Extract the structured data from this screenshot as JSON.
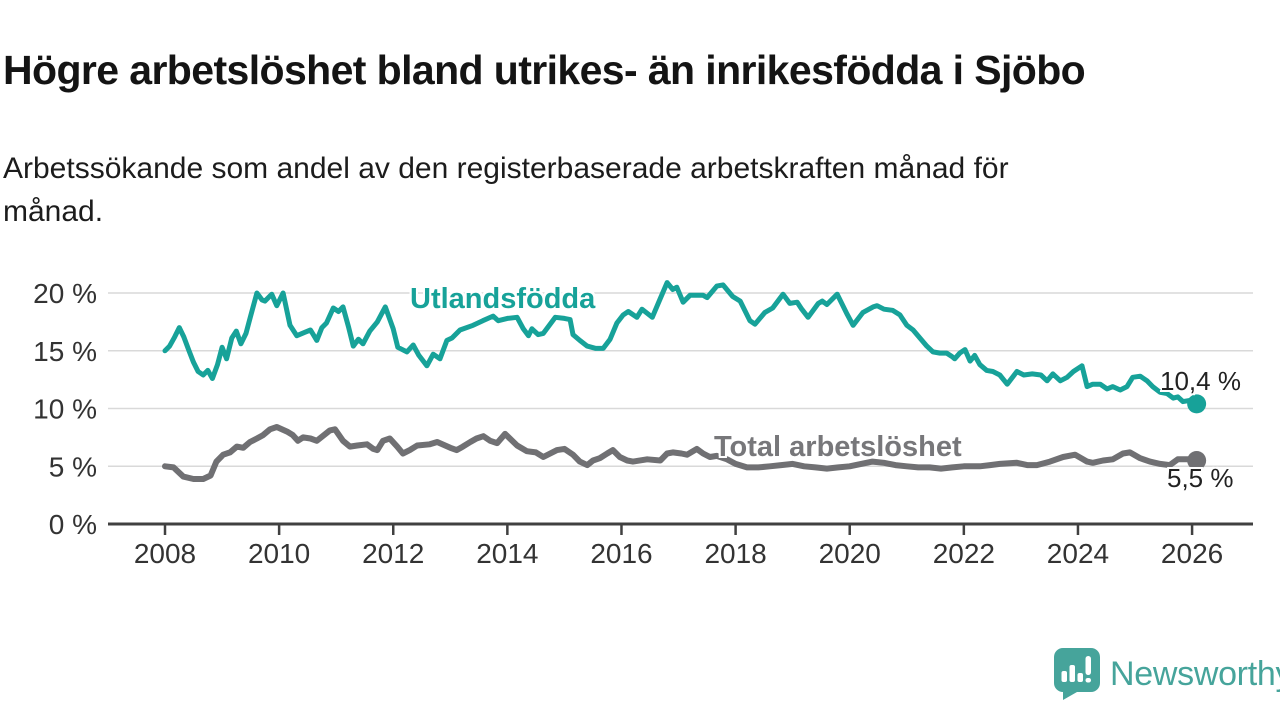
{
  "header": {
    "title": "Högre arbetslöshet bland utrikes- än inrikesfödda i Sjöbo",
    "subtitle": "Arbetssökande som andel av den registerbaserade arbetskraften månad för\nmånad."
  },
  "footer": {
    "brand": "Newsworthy"
  },
  "colors": {
    "foreign_born_line": "#17a299",
    "total_line": "#707073",
    "total_label_text": "#77777a",
    "axis": "#404040",
    "gridline": "#d9d9d9",
    "tick_label": "#333333",
    "logo_teal": "#46a49b",
    "annotation_text": "#222222"
  },
  "chart_data": {
    "type": "line",
    "title": "Högre arbetslöshet bland utrikes- än inrikesfödda i Sjöbo",
    "subtitle": "Arbetssökande som andel av den registerbaserade arbetskraften månad för månad.",
    "xlabel": "",
    "ylabel": "",
    "grid": true,
    "legend_position": "inline-labels",
    "x_axis": {
      "min": 2007,
      "max": 2027.05,
      "ticks": [
        2008,
        2010,
        2012,
        2014,
        2016,
        2018,
        2020,
        2022,
        2024,
        2026
      ]
    },
    "y_axis": {
      "min": 0,
      "max": 21.2,
      "ticks": [
        0,
        5,
        10,
        15,
        20
      ],
      "tick_suffix": " %"
    },
    "series": [
      {
        "name": "Utlandsfödda",
        "color": "#17a299",
        "end_label": "10,4 %",
        "end_value": 10.4,
        "points": [
          [
            2008.0,
            15.0
          ],
          [
            2008.08,
            15.4
          ],
          [
            2008.17,
            16.2
          ],
          [
            2008.25,
            17.0
          ],
          [
            2008.33,
            16.2
          ],
          [
            2008.42,
            15.0
          ],
          [
            2008.5,
            14.0
          ],
          [
            2008.58,
            13.2
          ],
          [
            2008.67,
            12.9
          ],
          [
            2008.75,
            13.3
          ],
          [
            2008.83,
            12.6
          ],
          [
            2008.92,
            13.8
          ],
          [
            2009.0,
            15.3
          ],
          [
            2009.08,
            14.3
          ],
          [
            2009.17,
            16.1
          ],
          [
            2009.25,
            16.7
          ],
          [
            2009.33,
            15.6
          ],
          [
            2009.42,
            16.5
          ],
          [
            2009.5,
            18.0
          ],
          [
            2009.61,
            20.0
          ],
          [
            2009.7,
            19.4
          ],
          [
            2009.75,
            19.3
          ],
          [
            2009.87,
            19.9
          ],
          [
            2009.96,
            18.9
          ],
          [
            2010.07,
            20.0
          ],
          [
            2010.19,
            17.2
          ],
          [
            2010.31,
            16.3
          ],
          [
            2010.45,
            16.6
          ],
          [
            2010.55,
            16.8
          ],
          [
            2010.66,
            15.9
          ],
          [
            2010.75,
            17.0
          ],
          [
            2010.83,
            17.4
          ],
          [
            2010.95,
            18.7
          ],
          [
            2011.04,
            18.4
          ],
          [
            2011.12,
            18.8
          ],
          [
            2011.22,
            17.0
          ],
          [
            2011.3,
            15.4
          ],
          [
            2011.39,
            16.0
          ],
          [
            2011.47,
            15.6
          ],
          [
            2011.59,
            16.7
          ],
          [
            2011.72,
            17.5
          ],
          [
            2011.86,
            18.8
          ],
          [
            2012.0,
            16.9
          ],
          [
            2012.08,
            15.3
          ],
          [
            2012.24,
            14.9
          ],
          [
            2012.35,
            15.5
          ],
          [
            2012.45,
            14.6
          ],
          [
            2012.59,
            13.7
          ],
          [
            2012.7,
            14.7
          ],
          [
            2012.82,
            14.3
          ],
          [
            2012.94,
            15.9
          ],
          [
            2013.03,
            16.1
          ],
          [
            2013.17,
            16.8
          ],
          [
            2013.4,
            17.2
          ],
          [
            2013.57,
            17.6
          ],
          [
            2013.75,
            18.0
          ],
          [
            2013.84,
            17.6
          ],
          [
            2014.0,
            17.8
          ],
          [
            2014.17,
            17.9
          ],
          [
            2014.28,
            16.9
          ],
          [
            2014.37,
            16.3
          ],
          [
            2014.43,
            16.9
          ],
          [
            2014.54,
            16.4
          ],
          [
            2014.63,
            16.5
          ],
          [
            2014.84,
            17.9
          ],
          [
            2015.0,
            17.8
          ],
          [
            2015.1,
            17.7
          ],
          [
            2015.15,
            16.4
          ],
          [
            2015.27,
            15.9
          ],
          [
            2015.4,
            15.4
          ],
          [
            2015.55,
            15.2
          ],
          [
            2015.68,
            15.2
          ],
          [
            2015.8,
            16.0
          ],
          [
            2015.92,
            17.4
          ],
          [
            2016.03,
            18.1
          ],
          [
            2016.12,
            18.4
          ],
          [
            2016.27,
            17.9
          ],
          [
            2016.36,
            18.6
          ],
          [
            2016.54,
            17.9
          ],
          [
            2016.67,
            19.4
          ],
          [
            2016.8,
            20.9
          ],
          [
            2016.9,
            20.3
          ],
          [
            2016.97,
            20.5
          ],
          [
            2017.08,
            19.2
          ],
          [
            2017.2,
            19.8
          ],
          [
            2017.43,
            19.8
          ],
          [
            2017.5,
            19.6
          ],
          [
            2017.67,
            20.6
          ],
          [
            2017.78,
            20.7
          ],
          [
            2017.95,
            19.7
          ],
          [
            2018.08,
            19.3
          ],
          [
            2018.25,
            17.6
          ],
          [
            2018.34,
            17.3
          ],
          [
            2018.51,
            18.3
          ],
          [
            2018.65,
            18.7
          ],
          [
            2018.83,
            19.9
          ],
          [
            2018.95,
            19.1
          ],
          [
            2019.08,
            19.2
          ],
          [
            2019.16,
            18.6
          ],
          [
            2019.27,
            17.9
          ],
          [
            2019.45,
            19.1
          ],
          [
            2019.52,
            19.3
          ],
          [
            2019.6,
            19.0
          ],
          [
            2019.78,
            19.9
          ],
          [
            2019.95,
            18.2
          ],
          [
            2020.06,
            17.2
          ],
          [
            2020.23,
            18.3
          ],
          [
            2020.41,
            18.8
          ],
          [
            2020.48,
            18.9
          ],
          [
            2020.6,
            18.6
          ],
          [
            2020.75,
            18.5
          ],
          [
            2020.88,
            18.1
          ],
          [
            2021.0,
            17.2
          ],
          [
            2021.11,
            16.8
          ],
          [
            2021.23,
            16.1
          ],
          [
            2021.35,
            15.4
          ],
          [
            2021.46,
            14.9
          ],
          [
            2021.58,
            14.8
          ],
          [
            2021.7,
            14.8
          ],
          [
            2021.79,
            14.5
          ],
          [
            2021.84,
            14.3
          ],
          [
            2021.93,
            14.8
          ],
          [
            2022.02,
            15.1
          ],
          [
            2022.11,
            14.1
          ],
          [
            2022.19,
            14.6
          ],
          [
            2022.28,
            13.8
          ],
          [
            2022.4,
            13.3
          ],
          [
            2022.51,
            13.2
          ],
          [
            2022.63,
            12.9
          ],
          [
            2022.76,
            12.1
          ],
          [
            2022.93,
            13.2
          ],
          [
            2023.05,
            12.9
          ],
          [
            2023.2,
            13.0
          ],
          [
            2023.35,
            12.9
          ],
          [
            2023.46,
            12.4
          ],
          [
            2023.56,
            13.0
          ],
          [
            2023.69,
            12.4
          ],
          [
            2023.81,
            12.7
          ],
          [
            2023.92,
            13.2
          ],
          [
            2024.07,
            13.7
          ],
          [
            2024.16,
            11.9
          ],
          [
            2024.26,
            12.1
          ],
          [
            2024.39,
            12.1
          ],
          [
            2024.51,
            11.7
          ],
          [
            2024.61,
            11.9
          ],
          [
            2024.74,
            11.6
          ],
          [
            2024.86,
            11.9
          ],
          [
            2024.96,
            12.7
          ],
          [
            2025.09,
            12.8
          ],
          [
            2025.21,
            12.4
          ],
          [
            2025.31,
            11.9
          ],
          [
            2025.44,
            11.4
          ],
          [
            2025.56,
            11.3
          ],
          [
            2025.67,
            10.9
          ],
          [
            2025.75,
            11.0
          ],
          [
            2025.84,
            10.6
          ],
          [
            2025.96,
            10.7
          ],
          [
            2026.08,
            10.4
          ]
        ]
      },
      {
        "name": "Total arbetslöshet",
        "color": "#707073",
        "end_label": "5,5 %",
        "end_value": 5.5,
        "points": [
          [
            2008.0,
            5.0
          ],
          [
            2008.15,
            4.9
          ],
          [
            2008.32,
            4.1
          ],
          [
            2008.5,
            3.9
          ],
          [
            2008.67,
            3.9
          ],
          [
            2008.8,
            4.2
          ],
          [
            2008.9,
            5.4
          ],
          [
            2009.02,
            6.0
          ],
          [
            2009.14,
            6.2
          ],
          [
            2009.26,
            6.7
          ],
          [
            2009.37,
            6.6
          ],
          [
            2009.49,
            7.1
          ],
          [
            2009.61,
            7.4
          ],
          [
            2009.72,
            7.7
          ],
          [
            2009.84,
            8.2
          ],
          [
            2009.96,
            8.4
          ],
          [
            2010.14,
            8.0
          ],
          [
            2010.24,
            7.7
          ],
          [
            2010.33,
            7.2
          ],
          [
            2010.42,
            7.5
          ],
          [
            2010.55,
            7.4
          ],
          [
            2010.66,
            7.2
          ],
          [
            2010.89,
            8.1
          ],
          [
            2010.98,
            8.2
          ],
          [
            2011.12,
            7.2
          ],
          [
            2011.24,
            6.7
          ],
          [
            2011.37,
            6.8
          ],
          [
            2011.54,
            6.9
          ],
          [
            2011.65,
            6.5
          ],
          [
            2011.72,
            6.4
          ],
          [
            2011.82,
            7.2
          ],
          [
            2011.94,
            7.4
          ],
          [
            2012.07,
            6.7
          ],
          [
            2012.17,
            6.1
          ],
          [
            2012.29,
            6.4
          ],
          [
            2012.42,
            6.8
          ],
          [
            2012.64,
            6.9
          ],
          [
            2012.77,
            7.1
          ],
          [
            2013.0,
            6.6
          ],
          [
            2013.11,
            6.4
          ],
          [
            2013.22,
            6.7
          ],
          [
            2013.35,
            7.1
          ],
          [
            2013.46,
            7.4
          ],
          [
            2013.58,
            7.6
          ],
          [
            2013.7,
            7.2
          ],
          [
            2013.82,
            7.0
          ],
          [
            2013.96,
            7.8
          ],
          [
            2014.17,
            6.8
          ],
          [
            2014.34,
            6.3
          ],
          [
            2014.5,
            6.2
          ],
          [
            2014.63,
            5.8
          ],
          [
            2014.75,
            6.1
          ],
          [
            2014.87,
            6.4
          ],
          [
            2015.0,
            6.5
          ],
          [
            2015.15,
            6.0
          ],
          [
            2015.27,
            5.4
          ],
          [
            2015.4,
            5.1
          ],
          [
            2015.5,
            5.5
          ],
          [
            2015.62,
            5.7
          ],
          [
            2015.75,
            6.1
          ],
          [
            2015.85,
            6.4
          ],
          [
            2015.97,
            5.8
          ],
          [
            2016.1,
            5.5
          ],
          [
            2016.2,
            5.4
          ],
          [
            2016.45,
            5.6
          ],
          [
            2016.68,
            5.5
          ],
          [
            2016.8,
            6.1
          ],
          [
            2016.9,
            6.2
          ],
          [
            2017.05,
            6.1
          ],
          [
            2017.15,
            6.0
          ],
          [
            2017.32,
            6.5
          ],
          [
            2017.43,
            6.1
          ],
          [
            2017.55,
            5.8
          ],
          [
            2017.67,
            5.9
          ],
          [
            2017.85,
            5.6
          ],
          [
            2018.0,
            5.2
          ],
          [
            2018.2,
            4.9
          ],
          [
            2018.4,
            4.9
          ],
          [
            2018.6,
            5.0
          ],
          [
            2018.8,
            5.1
          ],
          [
            2019.0,
            5.2
          ],
          [
            2019.2,
            5.0
          ],
          [
            2019.4,
            4.9
          ],
          [
            2019.6,
            4.8
          ],
          [
            2019.8,
            4.9
          ],
          [
            2020.0,
            5.0
          ],
          [
            2020.2,
            5.2
          ],
          [
            2020.4,
            5.4
          ],
          [
            2020.6,
            5.3
          ],
          [
            2020.8,
            5.1
          ],
          [
            2021.0,
            5.0
          ],
          [
            2021.2,
            4.9
          ],
          [
            2021.4,
            4.9
          ],
          [
            2021.6,
            4.8
          ],
          [
            2021.8,
            4.9
          ],
          [
            2022.0,
            5.0
          ],
          [
            2022.11,
            5.0
          ],
          [
            2022.28,
            5.0
          ],
          [
            2022.46,
            5.1
          ],
          [
            2022.63,
            5.2
          ],
          [
            2022.93,
            5.3
          ],
          [
            2023.11,
            5.1
          ],
          [
            2023.28,
            5.1
          ],
          [
            2023.51,
            5.4
          ],
          [
            2023.74,
            5.8
          ],
          [
            2023.95,
            6.0
          ],
          [
            2024.16,
            5.4
          ],
          [
            2024.26,
            5.3
          ],
          [
            2024.44,
            5.5
          ],
          [
            2024.61,
            5.6
          ],
          [
            2024.79,
            6.1
          ],
          [
            2024.91,
            6.2
          ],
          [
            2025.09,
            5.7
          ],
          [
            2025.26,
            5.4
          ],
          [
            2025.44,
            5.2
          ],
          [
            2025.61,
            5.1
          ],
          [
            2025.75,
            5.6
          ],
          [
            2025.96,
            5.6
          ],
          [
            2026.08,
            5.5
          ]
        ]
      }
    ]
  }
}
